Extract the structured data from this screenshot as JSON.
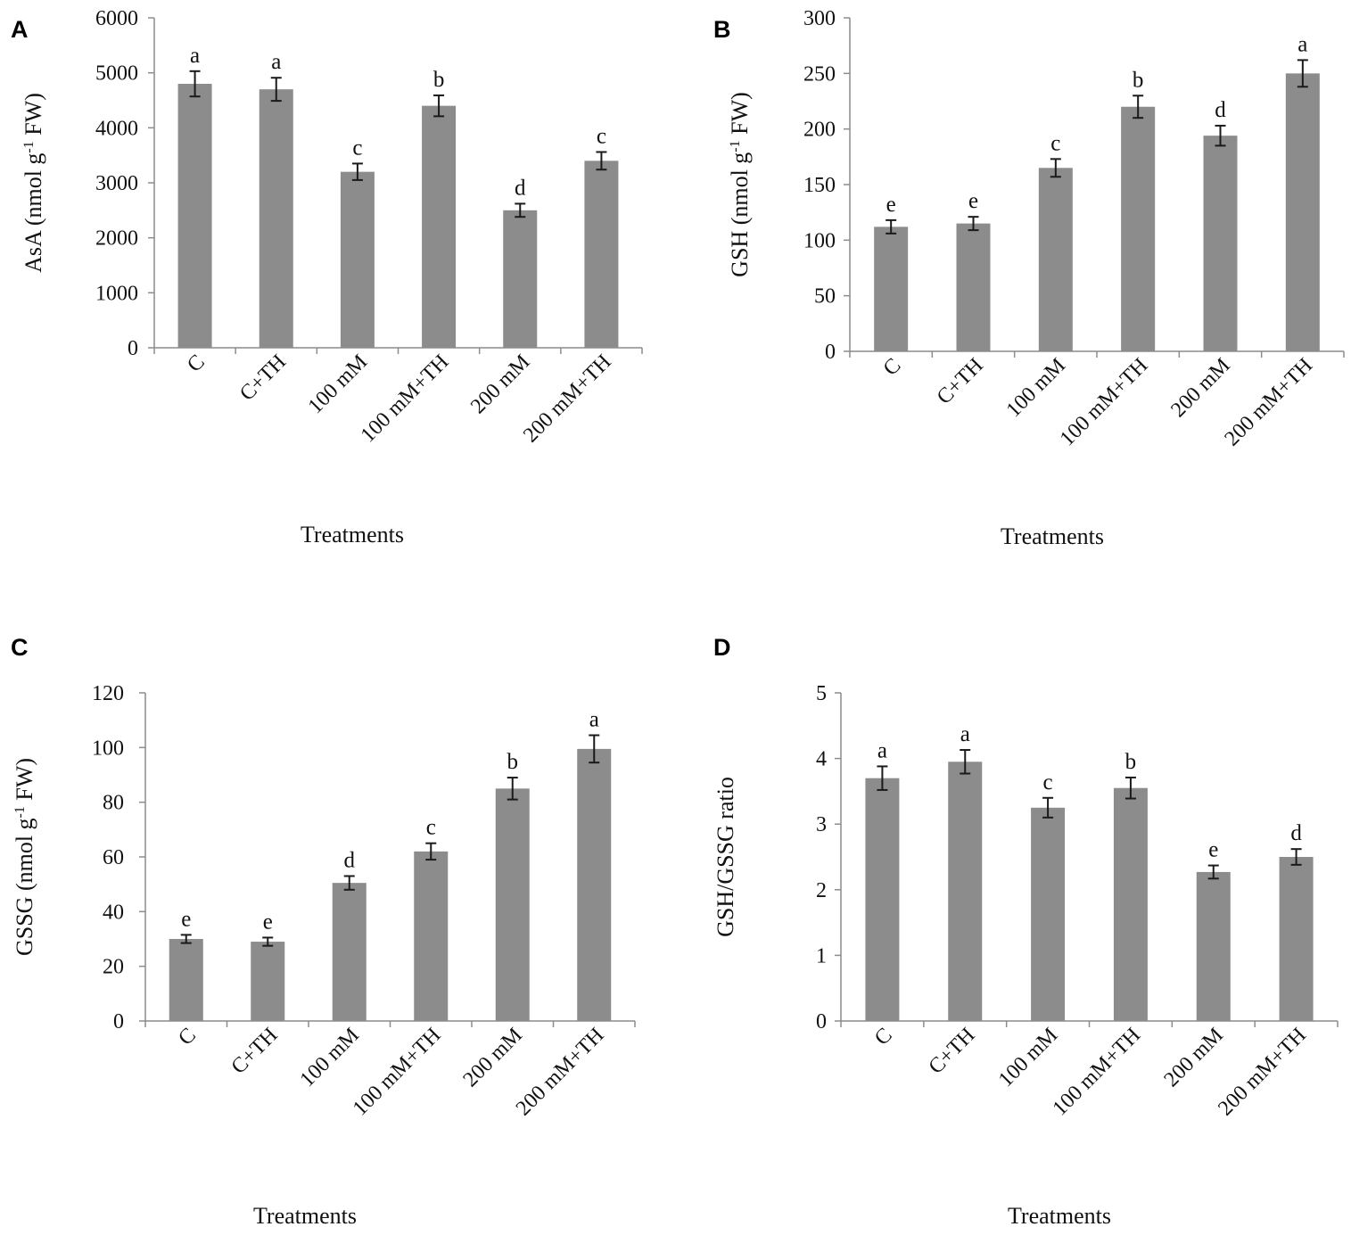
{
  "chart_data": [
    {
      "type": "bar",
      "panel": "A",
      "ylabel": "AsA (nmol g-1 FW)",
      "ylabel_parts": {
        "pre": "AsA (nmol g",
        "sup": "-1",
        "post": " FW)"
      },
      "xlabel": "Treatments",
      "ylim": [
        0,
        6000
      ],
      "yticks": [
        0,
        1000,
        2000,
        3000,
        4000,
        5000,
        6000
      ],
      "categories": [
        "C",
        "C+TH",
        "100 mM",
        "100 mM+TH",
        "200 mM",
        "200 mM+TH"
      ],
      "values": [
        4800,
        4700,
        3200,
        4400,
        2500,
        3400
      ],
      "errors": [
        230,
        210,
        150,
        190,
        120,
        160
      ],
      "letters": [
        "a",
        "a",
        "c",
        "b",
        "d",
        "c"
      ]
    },
    {
      "type": "bar",
      "panel": "B",
      "ylabel": "GSH (nmol g-1 FW)",
      "ylabel_parts": {
        "pre": "GSH (nmol g",
        "sup": "-1",
        "post": " FW)"
      },
      "xlabel": "Treatments",
      "ylim": [
        0,
        300
      ],
      "yticks": [
        0,
        50,
        100,
        150,
        200,
        250,
        300
      ],
      "categories": [
        "C",
        "C+TH",
        "100 mM",
        "100 mM+TH",
        "200 mM",
        "200 mM+TH"
      ],
      "values": [
        112,
        115,
        165,
        220,
        194,
        250
      ],
      "errors": [
        6,
        6,
        8,
        10,
        9,
        12
      ],
      "letters": [
        "e",
        "e",
        "c",
        "b",
        "d",
        "a"
      ]
    },
    {
      "type": "bar",
      "panel": "C",
      "ylabel": "GSSG (nmol g-1 FW)",
      "ylabel_parts": {
        "pre": "GSSG (nmol g",
        "sup": "-1",
        "post": " FW)"
      },
      "xlabel": "Treatments",
      "ylim": [
        0,
        120
      ],
      "yticks": [
        0,
        20,
        40,
        60,
        80,
        100,
        120
      ],
      "categories": [
        "C",
        "C+TH",
        "100 mM",
        "100 mM+TH",
        "200 mM",
        "200 mM+TH"
      ],
      "values": [
        30,
        29,
        50.5,
        62,
        85,
        99.5
      ],
      "errors": [
        1.5,
        1.5,
        2.5,
        3,
        4,
        5
      ],
      "letters": [
        "e",
        "e",
        "d",
        "c",
        "b",
        "a"
      ]
    },
    {
      "type": "bar",
      "panel": "D",
      "ylabel": "GSH/GSSG ratio",
      "ylabel_parts": {
        "pre": "GSH/GSSG ratio",
        "sup": "",
        "post": ""
      },
      "xlabel": "Treatments",
      "ylim": [
        0,
        5
      ],
      "yticks": [
        0,
        1,
        2,
        3,
        4,
        5
      ],
      "categories": [
        "C",
        "C+TH",
        "100 mM",
        "100 mM+TH",
        "200 mM",
        "200 mM+TH"
      ],
      "values": [
        3.7,
        3.95,
        3.25,
        3.55,
        2.27,
        2.5
      ],
      "errors": [
        0.18,
        0.18,
        0.15,
        0.16,
        0.1,
        0.12
      ],
      "letters": [
        "a",
        "a",
        "c",
        "b",
        "e",
        "d"
      ]
    }
  ]
}
